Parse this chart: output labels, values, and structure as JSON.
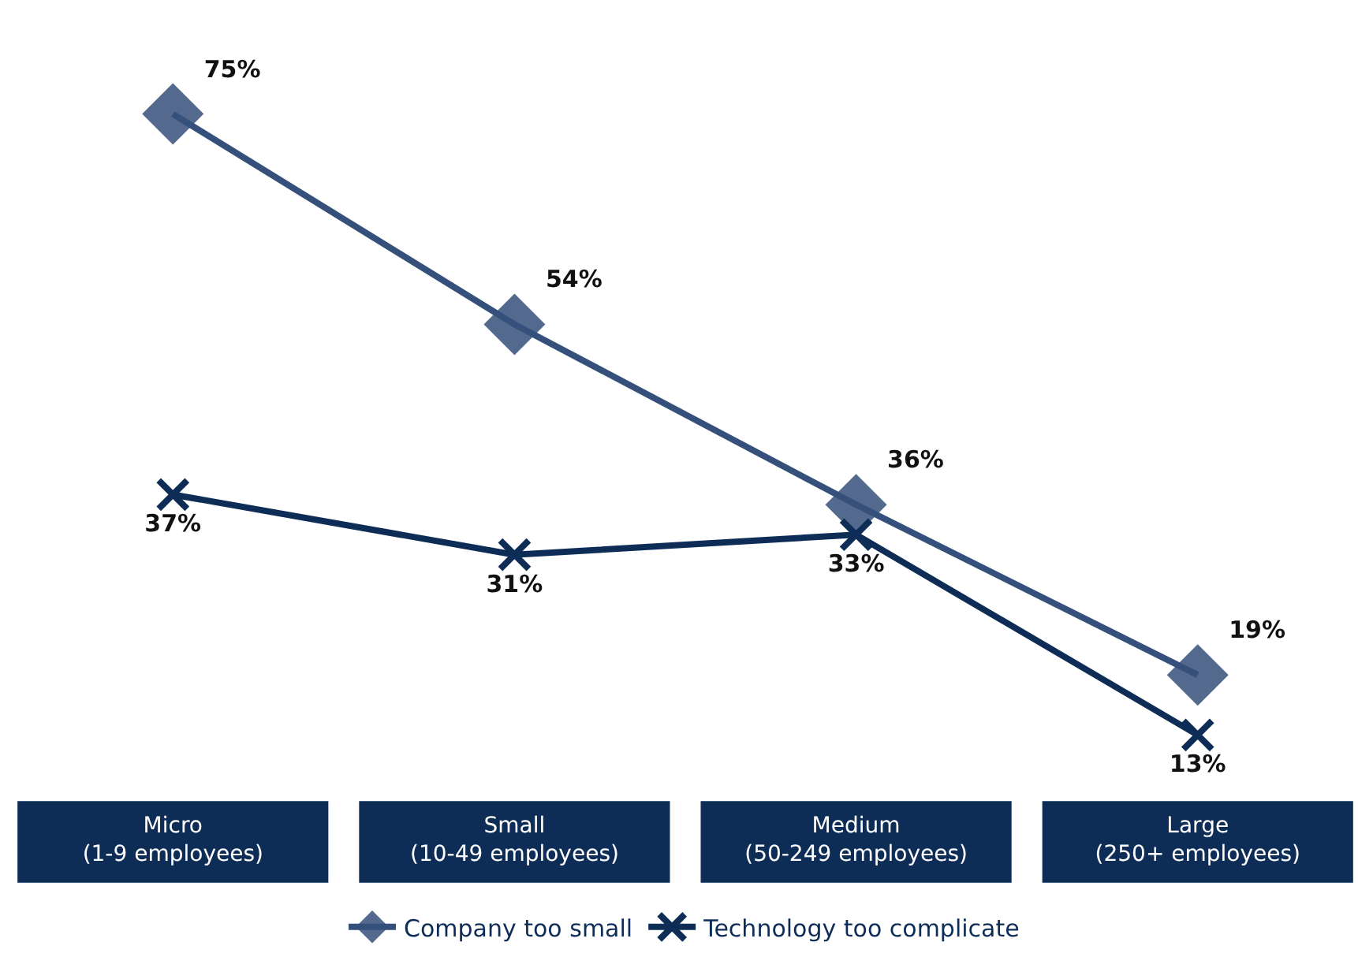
{
  "chart_data": {
    "type": "line",
    "categories": [
      "Micro\n(1-9 employees)",
      "Small\n(10-49 employees)",
      "Medium\n(50-249 employees)",
      "Large\n(250+ employees)"
    ],
    "series": [
      {
        "name": "Company too small",
        "color": "#35507a",
        "marker": "diamond",
        "values": [
          75,
          54,
          36,
          19
        ],
        "value_labels": [
          "75%",
          "54%",
          "36%",
          "19%"
        ]
      },
      {
        "name": "Technology too complicate",
        "color": "#0d2d57",
        "marker": "cross",
        "values": [
          37,
          31,
          33,
          13
        ],
        "value_labels": [
          "37%",
          "31%",
          "33%",
          "13%"
        ]
      }
    ],
    "legend": "bottom"
  }
}
